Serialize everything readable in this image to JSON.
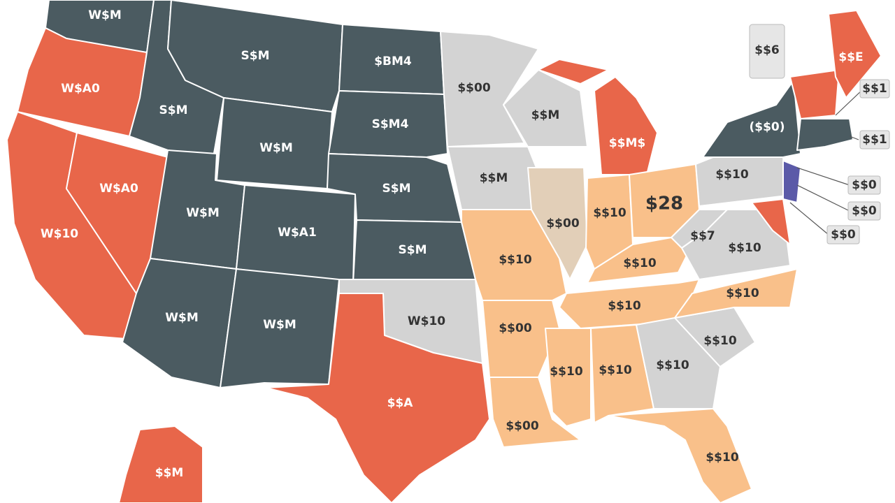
{
  "labels": [
    "W$M",
    "S$M",
    "$BM4",
    "W$A0",
    "S$M",
    "W$M",
    "S$M4",
    "$$00",
    "$$M",
    "$$M$",
    "W$A0",
    "W$M",
    "W$A1",
    "S$M",
    "S$M",
    "$$M",
    "$$00",
    "$$10",
    "$28",
    "$$10",
    "($$0)",
    "W$10",
    "W$M",
    "W$M",
    "W$10",
    "$$A",
    "$$10",
    "$$10",
    "$$7",
    "$$10",
    "$$10",
    "$$10",
    "$$00",
    "$$10",
    "$$10",
    "$$10",
    "$$10",
    "$$00",
    "$$10",
    "$$M",
    "$$E",
    "$$6",
    "$$1",
    "$$1",
    "$$0",
    "$$0",
    "$$0"
  ]
}
